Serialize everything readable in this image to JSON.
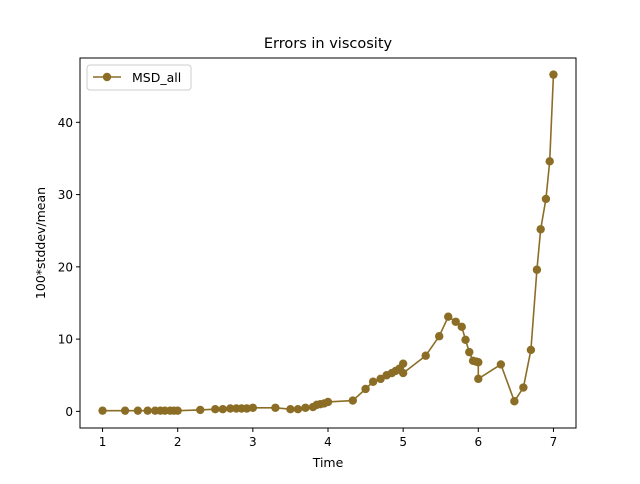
{
  "chart_data": {
    "type": "line",
    "title": "Errors in viscosity",
    "xlabel": "Time",
    "ylabel": "100*stddev/mean",
    "xlim": [
      0.7,
      7.3
    ],
    "ylim": [
      -2.3,
      48.9
    ],
    "xticks": [
      1,
      2,
      3,
      4,
      5,
      6,
      7
    ],
    "yticks": [
      0,
      10,
      20,
      30,
      40
    ],
    "grid": false,
    "legend_position": "top-left",
    "series": [
      {
        "name": "MSD_all",
        "color": "#8b6d26",
        "marker": "circle",
        "x": [
          1.0,
          1.3,
          1.47,
          1.6,
          1.7,
          1.77,
          1.83,
          1.9,
          1.95,
          2.0,
          2.3,
          2.5,
          2.6,
          2.7,
          2.78,
          2.85,
          2.92,
          3.0,
          3.3,
          3.5,
          3.6,
          3.7,
          3.8,
          3.85,
          3.9,
          3.95,
          4.0,
          4.33,
          4.5,
          4.6,
          4.7,
          4.78,
          4.85,
          4.9,
          4.95,
          5.0,
          5.0,
          5.3,
          5.48,
          5.6,
          5.7,
          5.78,
          5.83,
          5.88,
          5.93,
          5.97,
          6.0,
          6.0,
          6.3,
          6.48,
          6.6,
          6.7,
          6.78,
          6.83,
          6.9,
          6.95,
          7.0
        ],
        "y": [
          0.1,
          0.1,
          0.1,
          0.1,
          0.1,
          0.1,
          0.1,
          0.1,
          0.1,
          0.1,
          0.2,
          0.3,
          0.3,
          0.4,
          0.4,
          0.4,
          0.4,
          0.5,
          0.5,
          0.3,
          0.3,
          0.5,
          0.6,
          0.9,
          1.0,
          1.1,
          1.3,
          1.5,
          3.1,
          4.1,
          4.5,
          5.0,
          5.3,
          5.6,
          5.9,
          6.6,
          5.3,
          7.7,
          10.4,
          13.1,
          12.4,
          11.7,
          9.9,
          8.2,
          7.0,
          6.9,
          6.8,
          4.5,
          6.5,
          1.4,
          3.3,
          8.5,
          19.6,
          25.2,
          29.4,
          34.6,
          46.6
        ]
      }
    ]
  }
}
